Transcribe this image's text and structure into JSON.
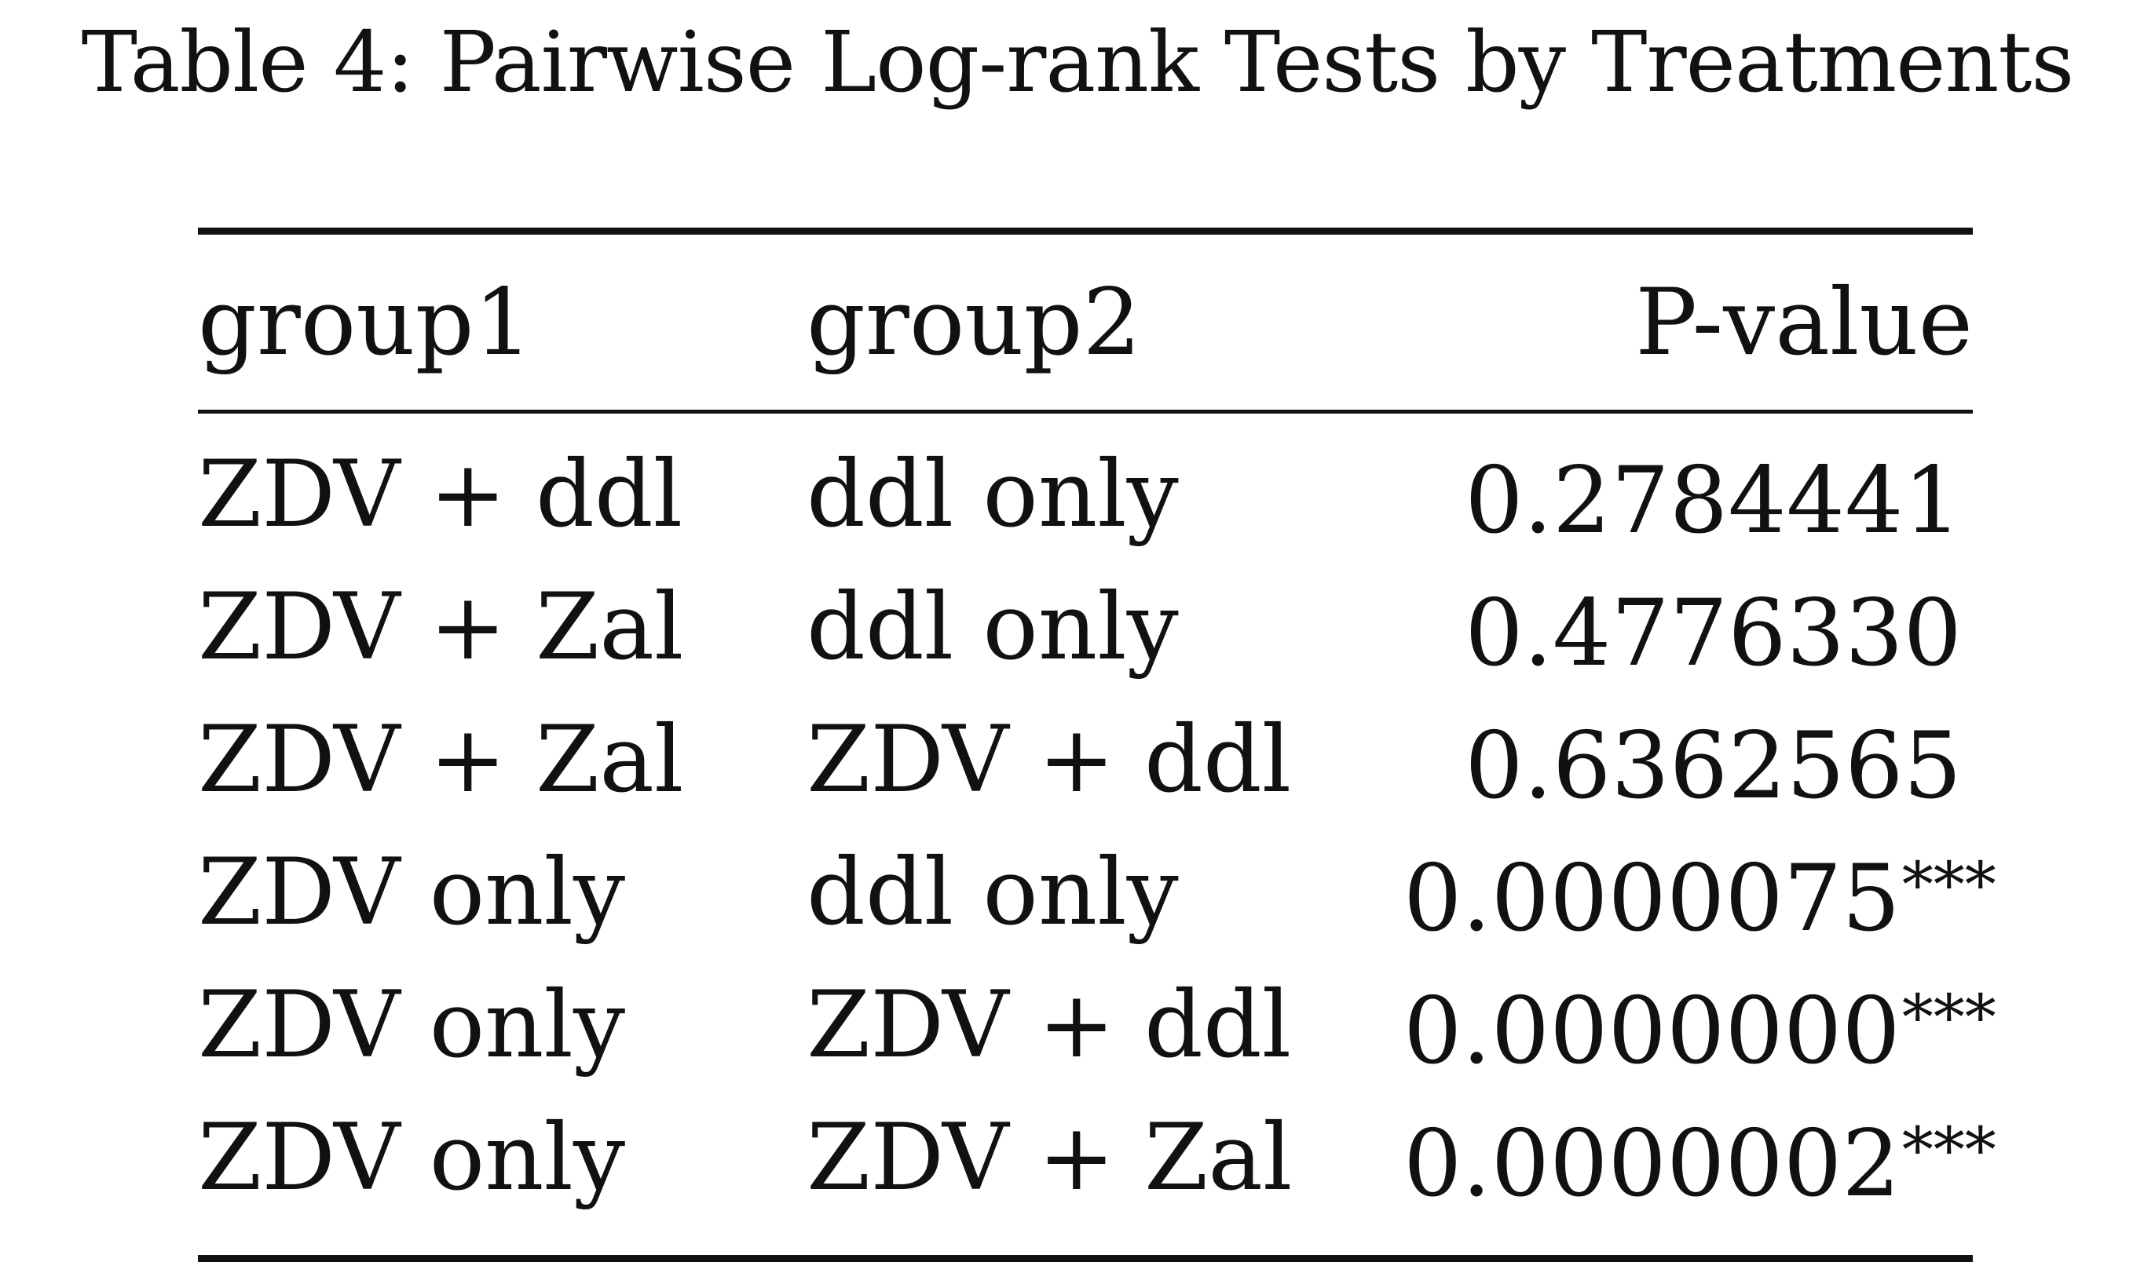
{
  "caption": "Table 4: Pairwise Log-rank Tests by Treatments",
  "table": {
    "headers": {
      "group1": "group1",
      "group2": "group2",
      "pvalue": "P-value"
    },
    "rows": [
      {
        "group1": "ZDV + ddl",
        "group2": "ddl only",
        "pvalue": "0.2784441",
        "significance": ""
      },
      {
        "group1": "ZDV + Zal",
        "group2": "ddl only",
        "pvalue": "0.4776330",
        "significance": ""
      },
      {
        "group1": "ZDV + Zal",
        "group2": "ZDV + ddl",
        "pvalue": "0.6362565",
        "significance": ""
      },
      {
        "group1": "ZDV only",
        "group2": "ddl only",
        "pvalue": "0.0000075",
        "significance": "***"
      },
      {
        "group1": "ZDV only",
        "group2": "ZDV + ddl",
        "pvalue": "0.0000000",
        "significance": "***"
      },
      {
        "group1": "ZDV only",
        "group2": "ZDV + Zal",
        "pvalue": "0.0000002",
        "significance": "***"
      }
    ]
  }
}
